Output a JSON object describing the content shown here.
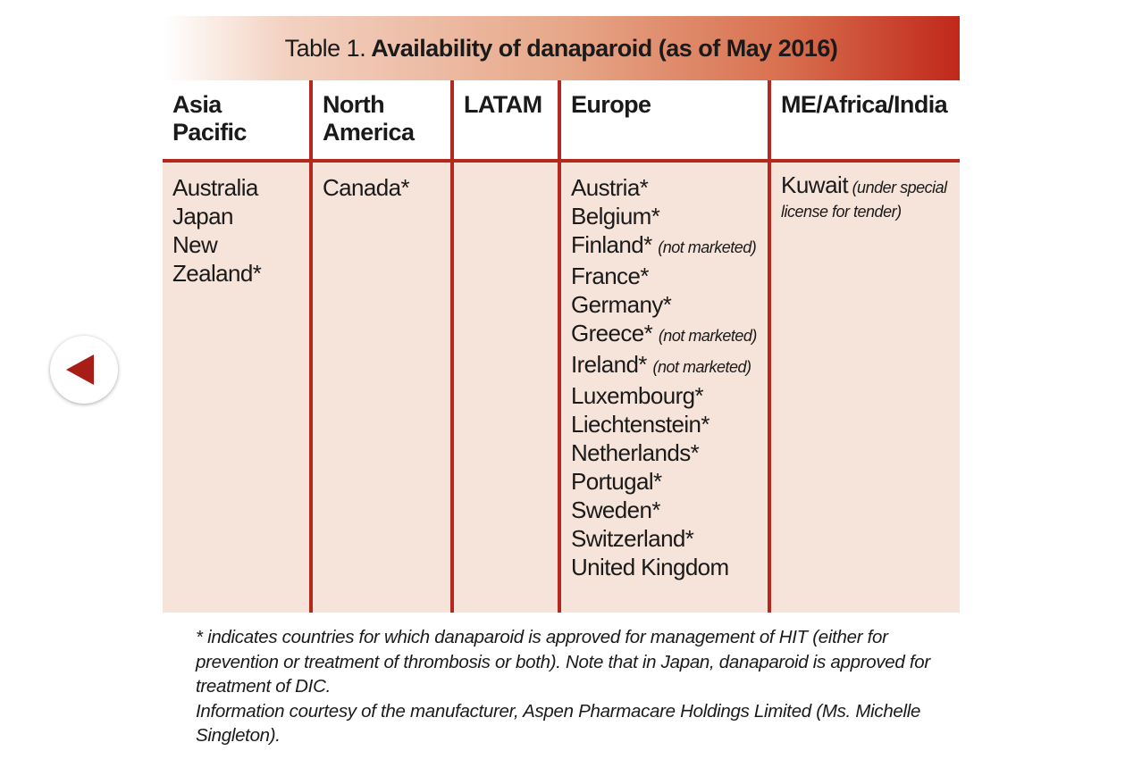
{
  "nav": {
    "back_icon": "triangle-left-icon",
    "accent_color": "#a81e17"
  },
  "table": {
    "title_prefix": "Table 1.",
    "title_main": "Availability of danaparoid (as of May 2016)",
    "columns": [
      {
        "header": "Asia Pacific"
      },
      {
        "header": "North America"
      },
      {
        "header": "LATAM"
      },
      {
        "header": "Europe"
      },
      {
        "header": "ME/Africa/India"
      }
    ],
    "asia_pacific": [
      "Australia",
      "Japan",
      "New Zealand*"
    ],
    "north_america": [
      "Canada*"
    ],
    "latam": [],
    "europe": [
      {
        "name": "Austria*",
        "note": ""
      },
      {
        "name": "Belgium*",
        "note": ""
      },
      {
        "name": "Finland*",
        "note": "(not marketed)"
      },
      {
        "name": "France*",
        "note": ""
      },
      {
        "name": "Germany*",
        "note": ""
      },
      {
        "name": "Greece*",
        "note": "(not marketed)"
      },
      {
        "name": "Ireland*",
        "note": "(not marketed)"
      },
      {
        "name": "Luxembourg*",
        "note": ""
      },
      {
        "name": "Liechtenstein*",
        "note": ""
      },
      {
        "name": "Netherlands*",
        "note": ""
      },
      {
        "name": "Portugal*",
        "note": ""
      },
      {
        "name": "Sweden*",
        "note": ""
      },
      {
        "name": "Switzerland*",
        "note": ""
      },
      {
        "name": "United Kingdom",
        "note": ""
      }
    ],
    "me_africa_india": {
      "name": "Kuwait",
      "note": "(under special license for tender)"
    },
    "colors": {
      "rule": "#b5281d",
      "body_bg": "#f6e3da",
      "title_gradient_end": "#c0281a"
    }
  },
  "footnote": {
    "line1": "* indicates countries for which danaparoid is approved for management of HIT (either for prevention or treatment of thrombosis or both). Note that in Japan, danaparoid is approved for treatment of DIC.",
    "line2": "Information courtesy of the manufacturer, Aspen Pharmacare Holdings Limited (Ms. Michelle Singleton)."
  }
}
